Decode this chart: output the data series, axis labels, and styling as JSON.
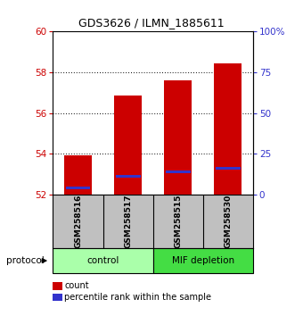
{
  "title": "GDS3626 / ILMN_1885611",
  "samples": [
    "GSM258516",
    "GSM258517",
    "GSM258515",
    "GSM258530"
  ],
  "groups": [
    "control",
    "control",
    "MIF depletion",
    "MIF depletion"
  ],
  "bar_bottom": 52,
  "red_tops": [
    53.9,
    56.85,
    57.6,
    58.45
  ],
  "blue_values": [
    52.32,
    52.9,
    53.1,
    53.3
  ],
  "ylim_left": [
    52,
    60
  ],
  "ylim_right": [
    0,
    100
  ],
  "yticks_left": [
    52,
    54,
    56,
    58,
    60
  ],
  "yticks_right": [
    0,
    25,
    50,
    75,
    100
  ],
  "bar_color": "#CC0000",
  "blue_color": "#3333CC",
  "bar_width": 0.55,
  "legend_red": "count",
  "legend_blue": "percentile rank within the sample",
  "protocol_label": "protocol",
  "left_tick_color": "#CC0000",
  "right_tick_color": "#3333CC",
  "bg_color": "#FFFFFF",
  "sample_area_bg": "#C0C0C0",
  "control_color": "#AAFFAA",
  "mif_color": "#44DD44"
}
